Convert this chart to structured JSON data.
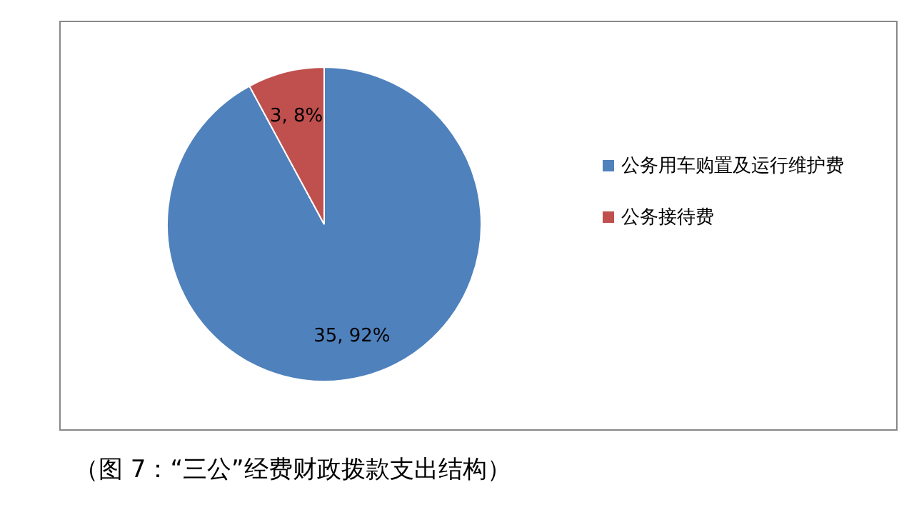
{
  "chart_data": {
    "type": "pie",
    "categories": [
      "公务用车购置及运行维护费",
      "公务接待费"
    ],
    "values": [
      35,
      3
    ],
    "colors": [
      "#4f81bd",
      "#c0504d"
    ],
    "value_labels": [
      "35, 92%",
      "3, 8%"
    ],
    "legend": "right",
    "annotations": [
      "（图 7：“三公”经费财政拨款支出结构）"
    ]
  }
}
